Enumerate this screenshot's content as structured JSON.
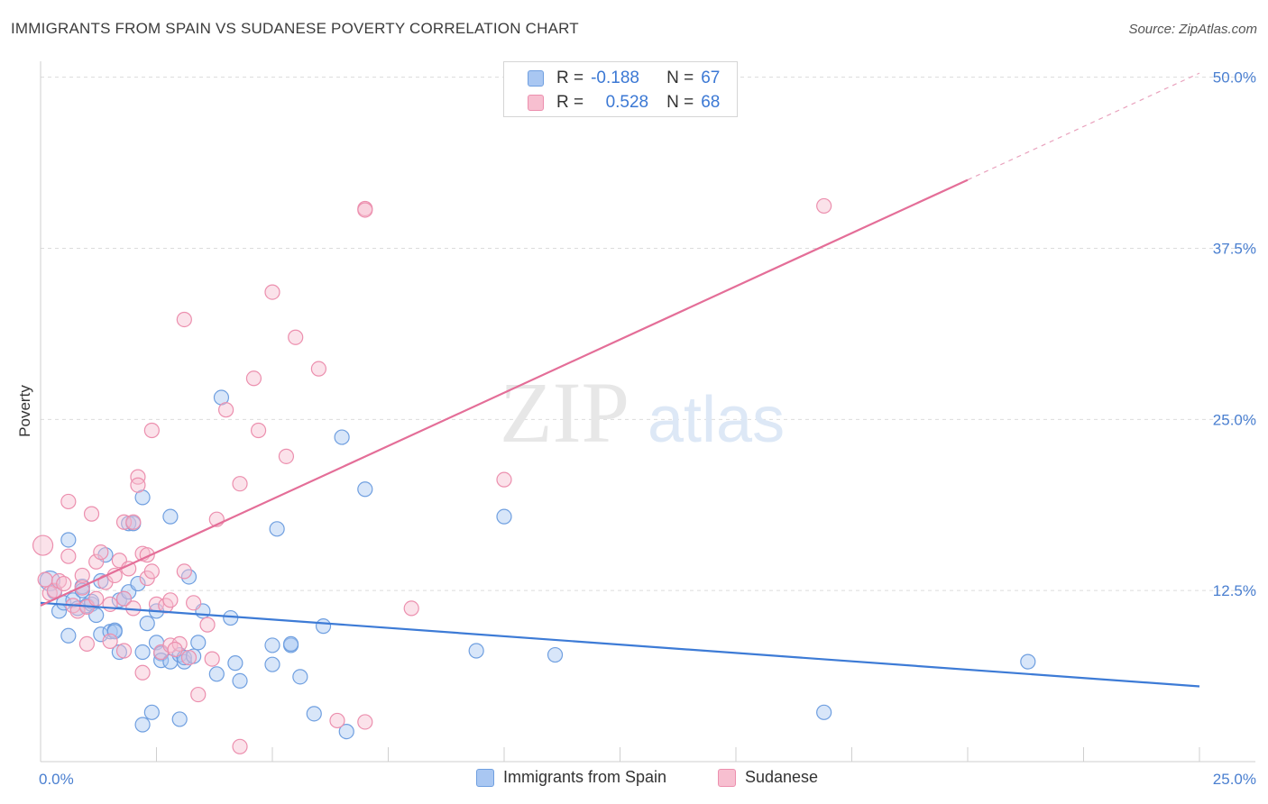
{
  "header": {
    "title": "IMMIGRANTS FROM SPAIN VS SUDANESE POVERTY CORRELATION CHART",
    "source": "Source: ZipAtlas.com"
  },
  "watermark": {
    "zip": "ZIP",
    "atlas": "atlas"
  },
  "stats": {
    "rows": [
      {
        "r_label": "R =",
        "r_value": "-0.188",
        "n_label": "N =",
        "n_value": "67",
        "color": "#a9c7f2",
        "border": "#6f9fe0"
      },
      {
        "r_label": "R =",
        "r_value": "0.528",
        "n_label": "N =",
        "n_value": "68",
        "color": "#f7bfd0",
        "border": "#ec8fae"
      }
    ]
  },
  "legend": {
    "items": [
      {
        "label": "Immigrants from Spain",
        "color": "#a9c7f2",
        "border": "#6f9fe0"
      },
      {
        "label": "Sudanese",
        "color": "#f7bfd0",
        "border": "#ec8fae"
      }
    ]
  },
  "chart_data": {
    "type": "scatter",
    "xlabel": "",
    "ylabel": "Poverty",
    "xlim": [
      0,
      25
    ],
    "ylim": [
      0,
      50
    ],
    "x_tick_labels": [
      "0.0%",
      "25.0%"
    ],
    "y_ticks": [
      12.5,
      25.0,
      37.5,
      50.0
    ],
    "y_tick_labels": [
      "12.5%",
      "25.0%",
      "37.5%",
      "50.0%"
    ],
    "grid": "horizontal dashed",
    "legend_placement": "bottom-center",
    "series": [
      {
        "name": "Immigrants from Spain",
        "color": "#6f9fe0",
        "fill": "#a9c7f2",
        "trend": {
          "x": [
            0,
            25
          ],
          "y": [
            11.6,
            5.5
          ]
        },
        "points": [
          [
            0.2,
            13.2
          ],
          [
            0.3,
            12.4
          ],
          [
            0.4,
            11.0
          ],
          [
            0.5,
            11.6
          ],
          [
            0.6,
            9.2
          ],
          [
            0.6,
            16.2
          ],
          [
            0.7,
            11.8
          ],
          [
            0.8,
            11.2
          ],
          [
            0.9,
            12.8
          ],
          [
            0.9,
            12.5
          ],
          [
            1.0,
            11.4
          ],
          [
            1.1,
            11.5
          ],
          [
            1.1,
            11.7
          ],
          [
            1.2,
            10.7
          ],
          [
            1.3,
            9.3
          ],
          [
            1.3,
            13.2
          ],
          [
            1.4,
            15.1
          ],
          [
            1.5,
            9.5
          ],
          [
            1.6,
            9.6
          ],
          [
            1.6,
            9.5
          ],
          [
            1.7,
            11.8
          ],
          [
            1.7,
            8.0
          ],
          [
            1.8,
            11.9
          ],
          [
            1.9,
            17.4
          ],
          [
            1.9,
            12.4
          ],
          [
            2.0,
            17.4
          ],
          [
            2.1,
            13.0
          ],
          [
            2.2,
            19.3
          ],
          [
            2.2,
            8.0
          ],
          [
            2.2,
            2.7
          ],
          [
            2.3,
            10.1
          ],
          [
            2.4,
            3.6
          ],
          [
            2.5,
            11.0
          ],
          [
            2.5,
            8.7
          ],
          [
            2.6,
            7.9
          ],
          [
            2.6,
            7.4
          ],
          [
            2.8,
            17.9
          ],
          [
            2.8,
            7.3
          ],
          [
            3.0,
            7.8
          ],
          [
            3.0,
            3.1
          ],
          [
            3.1,
            7.3
          ],
          [
            3.1,
            7.6
          ],
          [
            3.2,
            13.5
          ],
          [
            3.3,
            7.7
          ],
          [
            3.4,
            8.7
          ],
          [
            3.5,
            11.0
          ],
          [
            3.8,
            6.4
          ],
          [
            3.9,
            26.6
          ],
          [
            4.1,
            10.5
          ],
          [
            4.2,
            7.2
          ],
          [
            4.3,
            5.9
          ],
          [
            5.0,
            8.5
          ],
          [
            5.0,
            7.1
          ],
          [
            5.1,
            17.0
          ],
          [
            5.4,
            8.5
          ],
          [
            5.4,
            8.6
          ],
          [
            5.6,
            6.2
          ],
          [
            5.9,
            3.5
          ],
          [
            6.1,
            9.9
          ],
          [
            6.5,
            23.7
          ],
          [
            6.6,
            2.2
          ],
          [
            7.0,
            19.9
          ],
          [
            9.4,
            8.1
          ],
          [
            10.0,
            17.9
          ],
          [
            11.1,
            7.8
          ],
          [
            16.9,
            3.6
          ],
          [
            21.3,
            7.3
          ]
        ]
      },
      {
        "name": "Sudanese",
        "color": "#ec8fae",
        "fill": "#f7bfd0",
        "trend": {
          "x": [
            0,
            20
          ],
          "y": [
            11.4,
            42.5
          ]
        },
        "trend_extension": {
          "x": [
            20,
            25
          ],
          "y": [
            42.5,
            50.3
          ]
        },
        "points": [
          [
            0.05,
            15.8
          ],
          [
            0.1,
            13.3
          ],
          [
            0.2,
            12.3
          ],
          [
            0.3,
            12.5
          ],
          [
            0.4,
            13.2
          ],
          [
            0.5,
            13.0
          ],
          [
            0.6,
            15.0
          ],
          [
            0.6,
            19.0
          ],
          [
            0.7,
            11.4
          ],
          [
            0.8,
            11.0
          ],
          [
            0.9,
            12.7
          ],
          [
            0.9,
            13.6
          ],
          [
            1.0,
            11.3
          ],
          [
            1.0,
            8.6
          ],
          [
            1.1,
            18.1
          ],
          [
            1.2,
            14.6
          ],
          [
            1.2,
            11.9
          ],
          [
            1.3,
            15.3
          ],
          [
            1.4,
            13.1
          ],
          [
            1.5,
            8.8
          ],
          [
            1.5,
            11.5
          ],
          [
            1.6,
            13.6
          ],
          [
            1.7,
            14.7
          ],
          [
            1.8,
            17.5
          ],
          [
            1.8,
            11.9
          ],
          [
            1.8,
            8.1
          ],
          [
            1.9,
            14.1
          ],
          [
            2.0,
            17.5
          ],
          [
            2.0,
            11.2
          ],
          [
            2.1,
            20.8
          ],
          [
            2.1,
            20.2
          ],
          [
            2.2,
            6.5
          ],
          [
            2.2,
            15.2
          ],
          [
            2.3,
            13.4
          ],
          [
            2.3,
            15.1
          ],
          [
            2.4,
            24.2
          ],
          [
            2.4,
            13.9
          ],
          [
            2.5,
            11.5
          ],
          [
            2.6,
            8.0
          ],
          [
            2.7,
            11.4
          ],
          [
            2.8,
            8.5
          ],
          [
            3.0,
            8.6
          ],
          [
            2.8,
            11.8
          ],
          [
            2.9,
            8.2
          ],
          [
            3.1,
            13.9
          ],
          [
            3.1,
            32.3
          ],
          [
            3.2,
            7.6
          ],
          [
            3.3,
            11.6
          ],
          [
            3.4,
            4.9
          ],
          [
            3.6,
            10.0
          ],
          [
            3.7,
            7.5
          ],
          [
            3.8,
            17.7
          ],
          [
            4.0,
            25.7
          ],
          [
            4.3,
            20.3
          ],
          [
            4.3,
            1.1
          ],
          [
            4.6,
            28.0
          ],
          [
            4.7,
            24.2
          ],
          [
            5.0,
            34.3
          ],
          [
            5.3,
            22.3
          ],
          [
            5.5,
            31.0
          ],
          [
            6.0,
            28.7
          ],
          [
            6.4,
            3.0
          ],
          [
            7.0,
            40.4
          ],
          [
            7.0,
            40.3
          ],
          [
            7.0,
            2.9
          ],
          [
            8.0,
            11.2
          ],
          [
            10.0,
            20.6
          ],
          [
            16.9,
            40.6
          ]
        ]
      }
    ]
  }
}
